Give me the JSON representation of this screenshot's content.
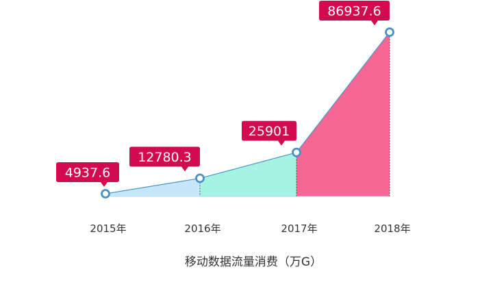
{
  "chart_data": {
    "type": "area",
    "title": "移动数据流量消费（万G）",
    "categories": [
      "2015年",
      "2016年",
      "2017年",
      "2018年"
    ],
    "series": [
      {
        "values": [
          4937.6,
          12780.3,
          25901,
          86937.6
        ]
      }
    ],
    "value_labels": [
      "4937.6",
      "12780.3",
      "25901",
      "86937.6"
    ],
    "segment_colors": [
      "#c6e6fa",
      "#a5f3e3",
      "#f76795"
    ],
    "line_color": "#4a96c8",
    "marker_color": "#4a90c8",
    "callout_color": "#d20a4f",
    "legend": "none",
    "grid": false
  }
}
